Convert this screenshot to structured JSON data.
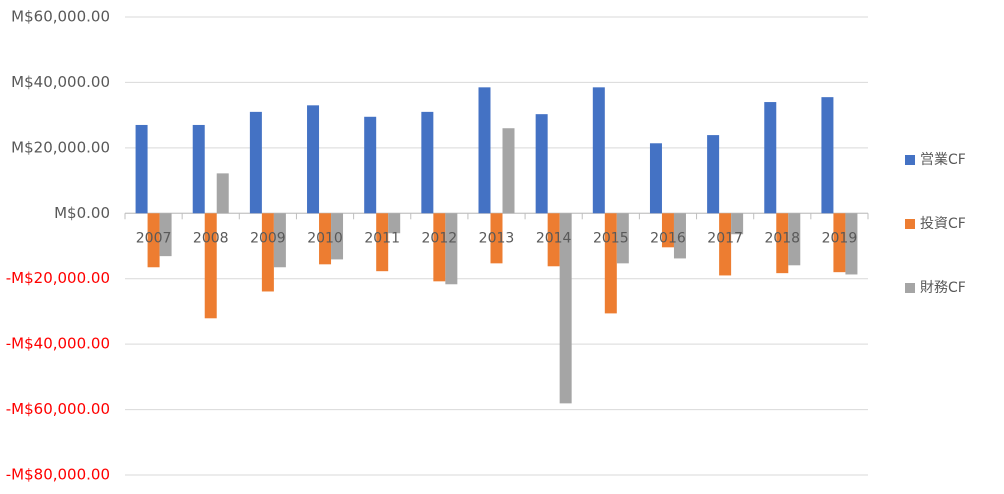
{
  "chart_data": {
    "type": "bar",
    "categories": [
      "2007",
      "2008",
      "2009",
      "2010",
      "2011",
      "2012",
      "2013",
      "2014",
      "2015",
      "2016",
      "2017",
      "2018",
      "2019"
    ],
    "series": [
      {
        "name": "営業CF",
        "color": "#4472c4",
        "values": [
          27000,
          27000,
          31000,
          33000,
          29500,
          31000,
          38500,
          30300,
          38500,
          21400,
          23900,
          34000,
          35500
        ]
      },
      {
        "name": "投資CF",
        "color": "#ed7d31",
        "values": [
          -16500,
          -32100,
          -23900,
          -15600,
          -17700,
          -20800,
          -15300,
          -16200,
          -30600,
          -10400,
          -19000,
          -18300,
          -18000
        ]
      },
      {
        "name": "財務CF",
        "color": "#a5a5a5",
        "values": [
          -13100,
          12200,
          -16500,
          -14100,
          -6100,
          -21700,
          26000,
          -58100,
          -15300,
          -13800,
          -6400,
          -15900,
          -18700
        ]
      }
    ],
    "ylim": [
      -80000,
      60000
    ],
    "yticks": [
      {
        "value": -80000,
        "label": "-M$80,000.00"
      },
      {
        "value": -60000,
        "label": "-M$60,000.00"
      },
      {
        "value": -40000,
        "label": "-M$40,000.00"
      },
      {
        "value": -20000,
        "label": "-M$20,000.00"
      },
      {
        "value": 0,
        "label": "M$0.00"
      },
      {
        "value": 20000,
        "label": "M$20,000.00"
      },
      {
        "value": 40000,
        "label": "M$40,000.00"
      },
      {
        "value": 60000,
        "label": "M$60,000.00"
      }
    ],
    "grid": true,
    "legend": "right",
    "negative_tick_color": "#ff0000"
  }
}
